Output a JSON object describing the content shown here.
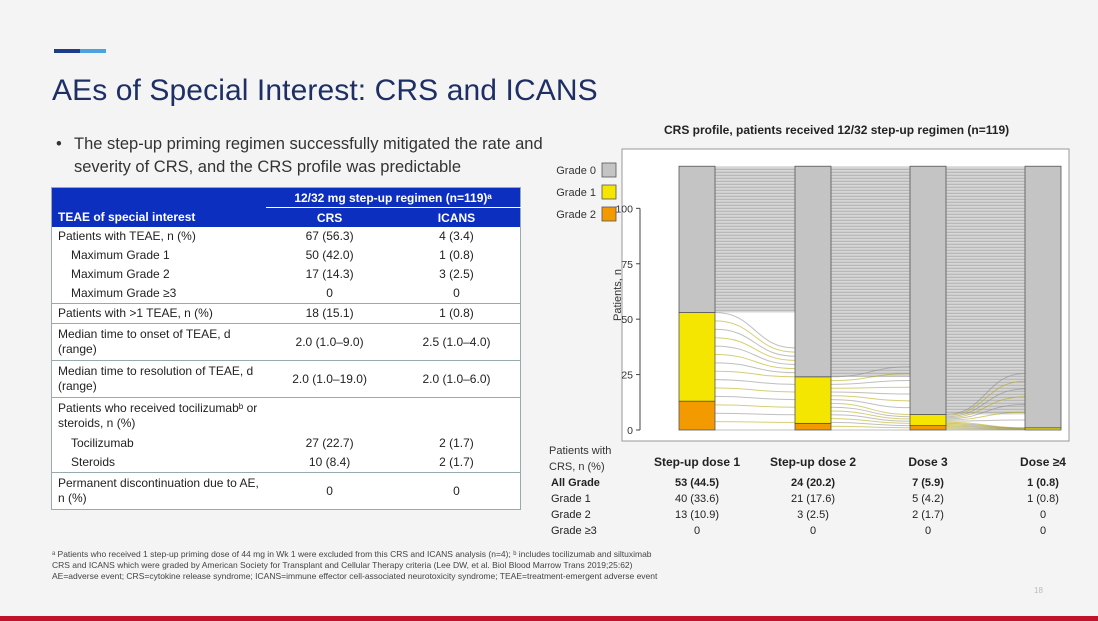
{
  "slide": {
    "title": "AEs of Special Interest: CRS and ICANS",
    "bullet": "The step-up priming regimen successfully mitigated the rate and severity of CRS, and the CRS profile was predictable",
    "bullet_marker": "•",
    "footnotes": [
      "ᵃ Patients who received 1 step-up priming dose of 44 mg in Wk 1 were excluded from this CRS and ICANS analysis (n=4); ᵇ includes tocilizumab and siltuximab",
      "CRS and ICANS which were graded by American Society for Transplant and Cellular Therapy criteria (Lee DW, et al. Biol Blood Marrow Trans 2019;25:62)",
      "AE=adverse event; CRS=cytokine release syndrome; ICANS=immune effector cell-associated neurotoxicity syndrome; TEAE=treatment-emergent adverse event"
    ],
    "page_number": "18"
  },
  "table": {
    "group_header": "12/32 mg step-up regimen (n=119)ᵃ",
    "col_label": "TEAE of special interest",
    "col_crs": "CRS",
    "col_icans": "ICANS",
    "rows": [
      {
        "label": "Patients with TEAE, n (%)",
        "crs": "67 (56.3)",
        "icans": "4 (3.4)"
      },
      {
        "label": "Maximum Grade 1",
        "crs": "50 (42.0)",
        "icans": "1 (0.8)"
      },
      {
        "label": "Maximum Grade 2",
        "crs": "17 (14.3)",
        "icans": "3 (2.5)"
      },
      {
        "label": "Maximum Grade ≥3",
        "crs": "0",
        "icans": "0"
      },
      {
        "label": "Patients with >1 TEAE, n (%)",
        "crs": "18 (15.1)",
        "icans": "1 (0.8)"
      },
      {
        "label": "Median time to onset of TEAE, d (range)",
        "crs": "2.0 (1.0–9.0)",
        "icans": "2.5 (1.0–4.0)"
      },
      {
        "label": "Median time to resolution of TEAE, d (range)",
        "crs": "2.0 (1.0–19.0)",
        "icans": "2.0 (1.0–6.0)"
      },
      {
        "label": "Patients who received tocilizumabᵇ or steroids, n (%)",
        "crs": "",
        "icans": ""
      },
      {
        "label": "Tocilizumab",
        "crs": "27 (22.7)",
        "icans": "2 (1.7)"
      },
      {
        "label": "Steroids",
        "crs": "10 (8.4)",
        "icans": "2 (1.7)"
      },
      {
        "label": "Permanent discontinuation due to AE, n (%)",
        "crs": "0",
        "icans": "0"
      }
    ]
  },
  "chart_data": {
    "type": "bar",
    "title": "CRS profile, patients received 12/32 step-up regimen (n=119)",
    "ylabel": "Patients, n",
    "ylim": [
      0,
      120
    ],
    "yticks": [
      0,
      25,
      50,
      75,
      100
    ],
    "total": 119,
    "categories": [
      "Step-up dose 1",
      "Step-up dose 2",
      "Dose 3",
      "Dose ≥4"
    ],
    "series": [
      {
        "name": "Grade 0",
        "color": "#c4c4c4",
        "values": [
          66,
          95,
          112,
          118
        ]
      },
      {
        "name": "Grade 1",
        "color": "#f5e600",
        "values": [
          40,
          21,
          5,
          1
        ]
      },
      {
        "name": "Grade 2",
        "color": "#f29a00",
        "values": [
          13,
          3,
          2,
          0
        ]
      }
    ],
    "legend_position": "top-left",
    "summary_header": "Patients with CRS, n (%)",
    "summary_rows": [
      {
        "label": "All Grade",
        "bold": true,
        "values": [
          "53 (44.5)",
          "24 (20.2)",
          "7 (5.9)",
          "1 (0.8)"
        ]
      },
      {
        "label": "Grade 1",
        "bold": false,
        "values": [
          "40 (33.6)",
          "21 (17.6)",
          "5 (4.2)",
          "1 (0.8)"
        ]
      },
      {
        "label": "Grade 2",
        "bold": false,
        "values": [
          "13 (10.9)",
          "3 (2.5)",
          "2 (1.7)",
          "0"
        ]
      },
      {
        "label": "Grade ≥3",
        "bold": false,
        "values": [
          "0",
          "0",
          "0",
          "0"
        ]
      }
    ]
  }
}
